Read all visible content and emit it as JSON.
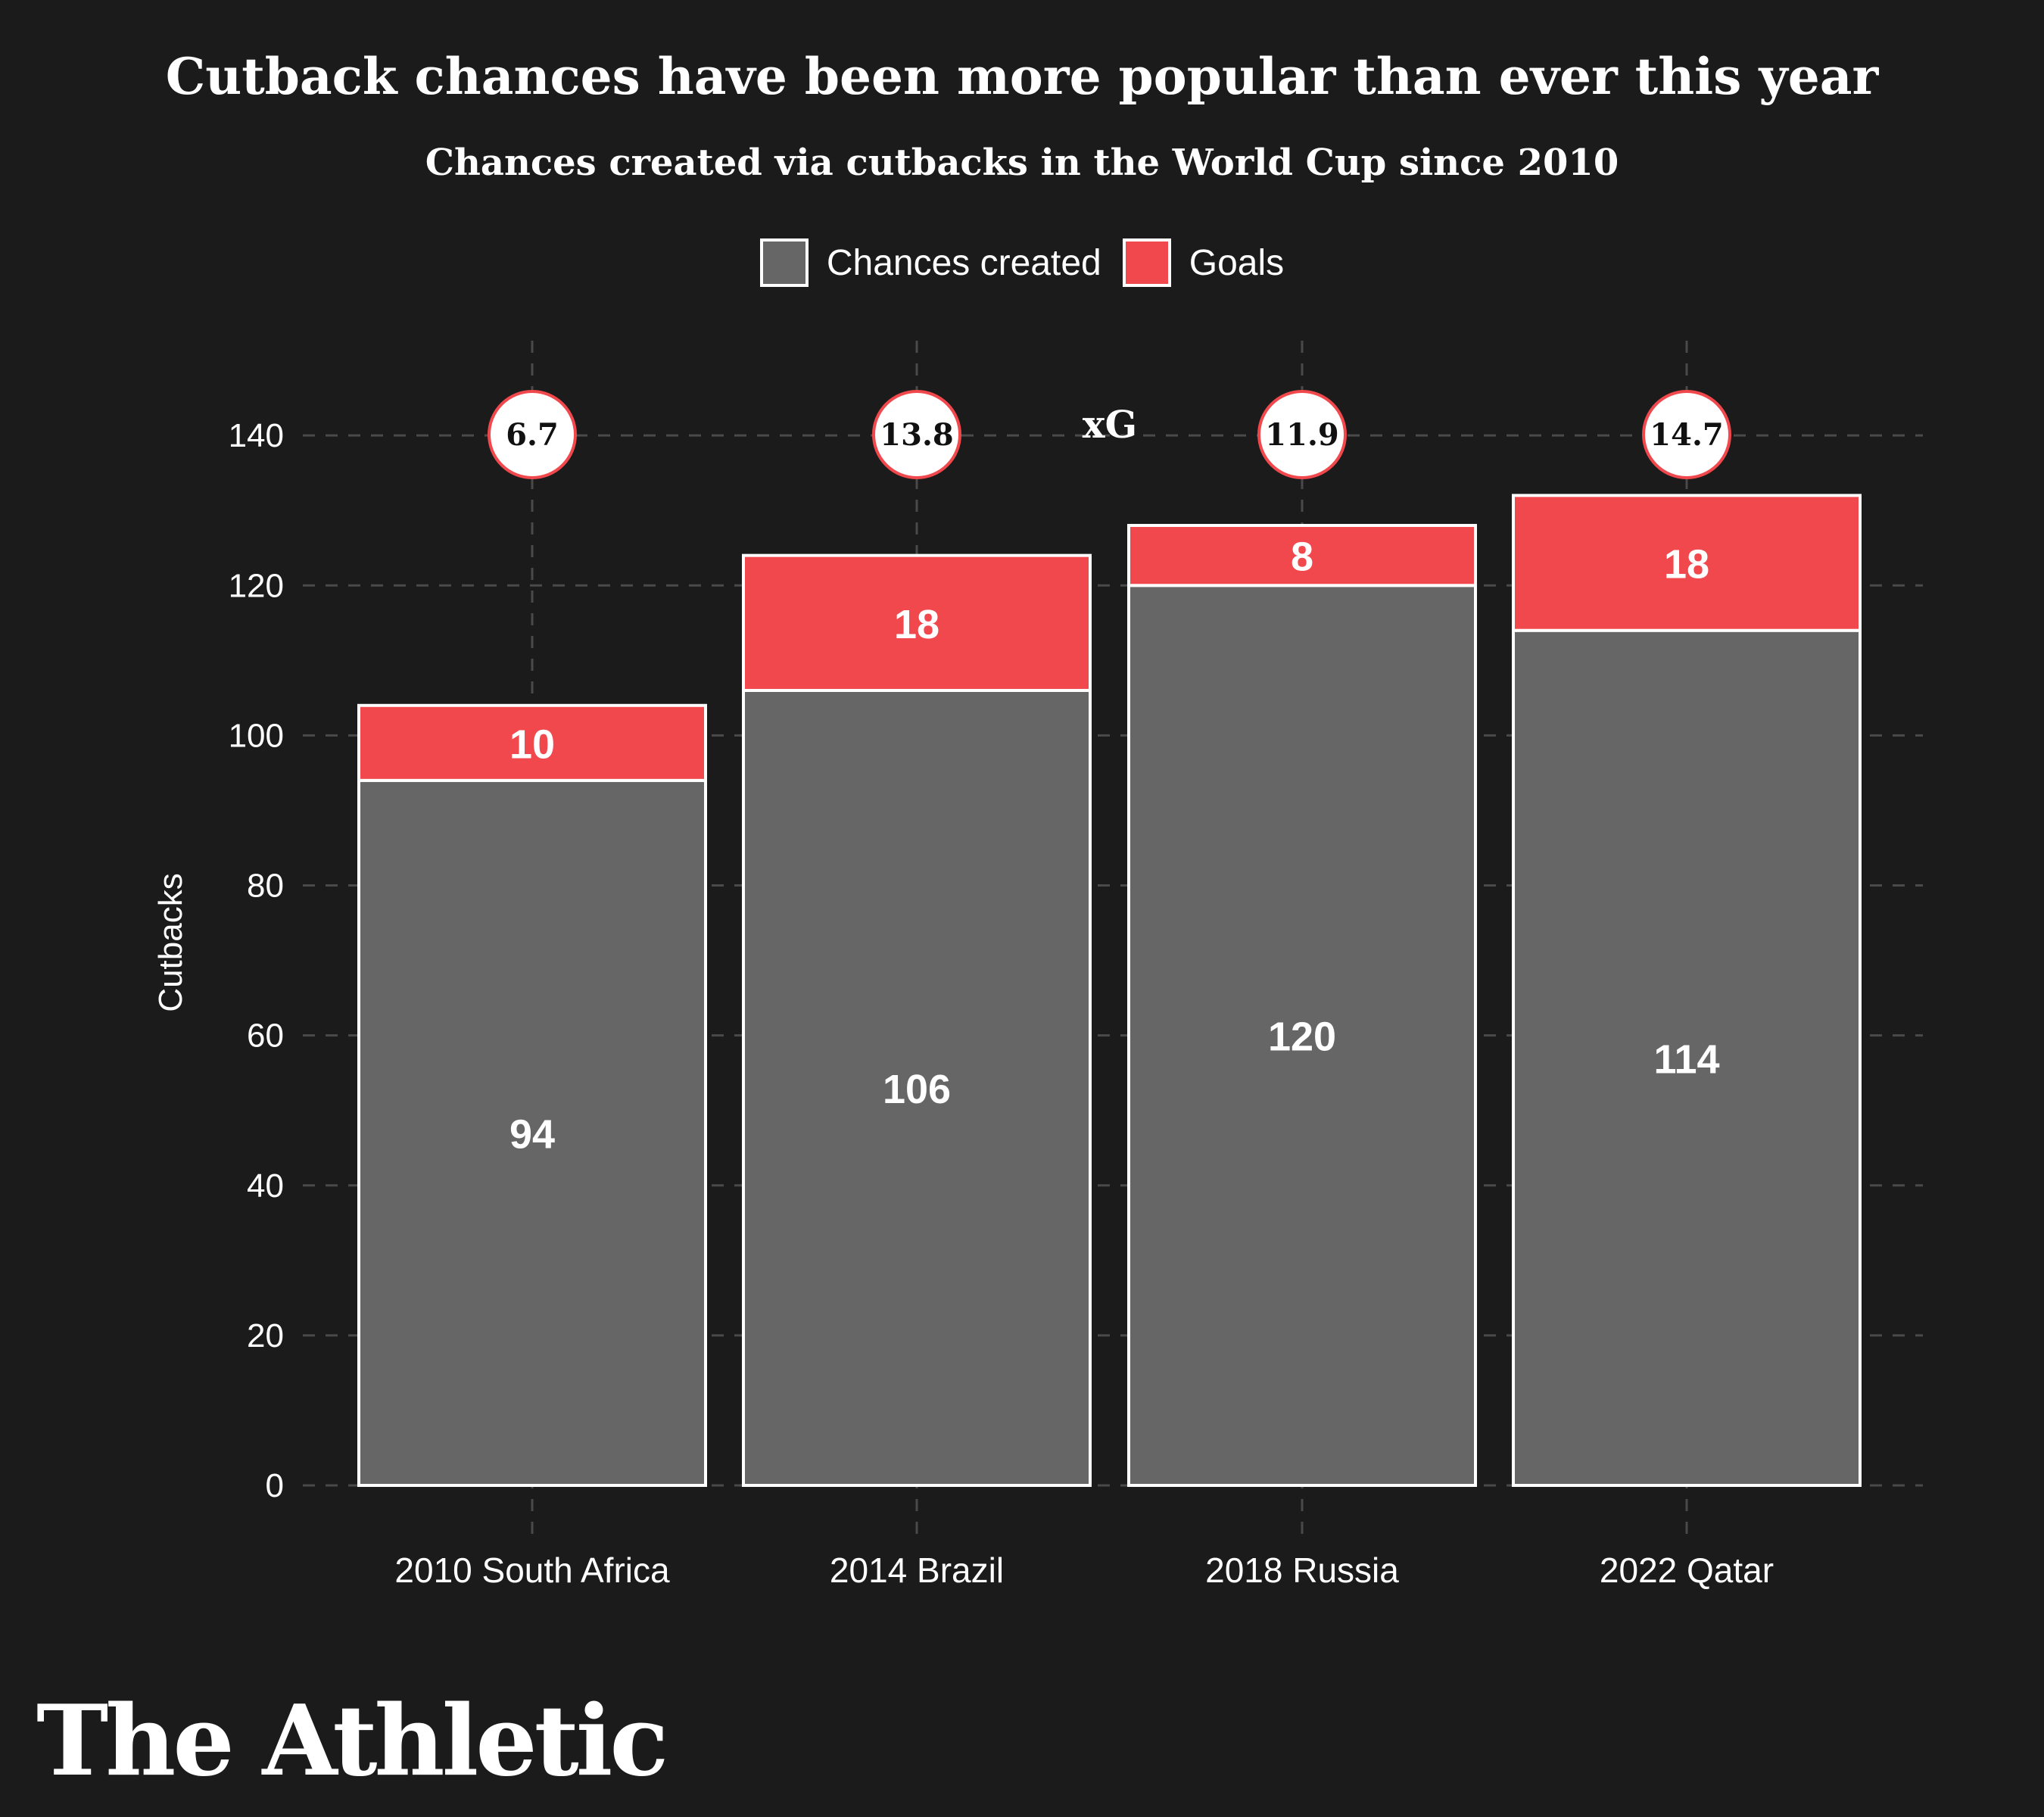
{
  "title": "Cutback chances have been more popular than ever this year",
  "subtitle": "Chances created via cutbacks in the World Cup since 2010",
  "legend": {
    "chances_label": "Chances created",
    "goals_label": "Goals"
  },
  "logo_text": "The Athletic",
  "colors": {
    "background": "#1b1b1b",
    "chances": "#666666",
    "goals": "#f0484c",
    "grid": "#4a4a4a",
    "text": "#ffffff"
  },
  "chart_data": {
    "type": "bar",
    "stacked": true,
    "categories": [
      "2010 South Africa",
      "2014 Brazil",
      "2018 Russia",
      "2022 Qatar"
    ],
    "series": [
      {
        "name": "Chances created",
        "values": [
          94,
          106,
          120,
          114
        ]
      },
      {
        "name": "Goals",
        "values": [
          10,
          18,
          8,
          18
        ]
      }
    ],
    "xg_label": "xG",
    "xg_values": [
      6.7,
      13.8,
      11.9,
      14.7
    ],
    "ylabel": "Cutbacks",
    "xlabel": "",
    "ylim": [
      0,
      150
    ],
    "yticks": [
      0,
      20,
      40,
      60,
      80,
      100,
      120,
      140
    ],
    "grid": true,
    "legend_position": "top-center"
  }
}
